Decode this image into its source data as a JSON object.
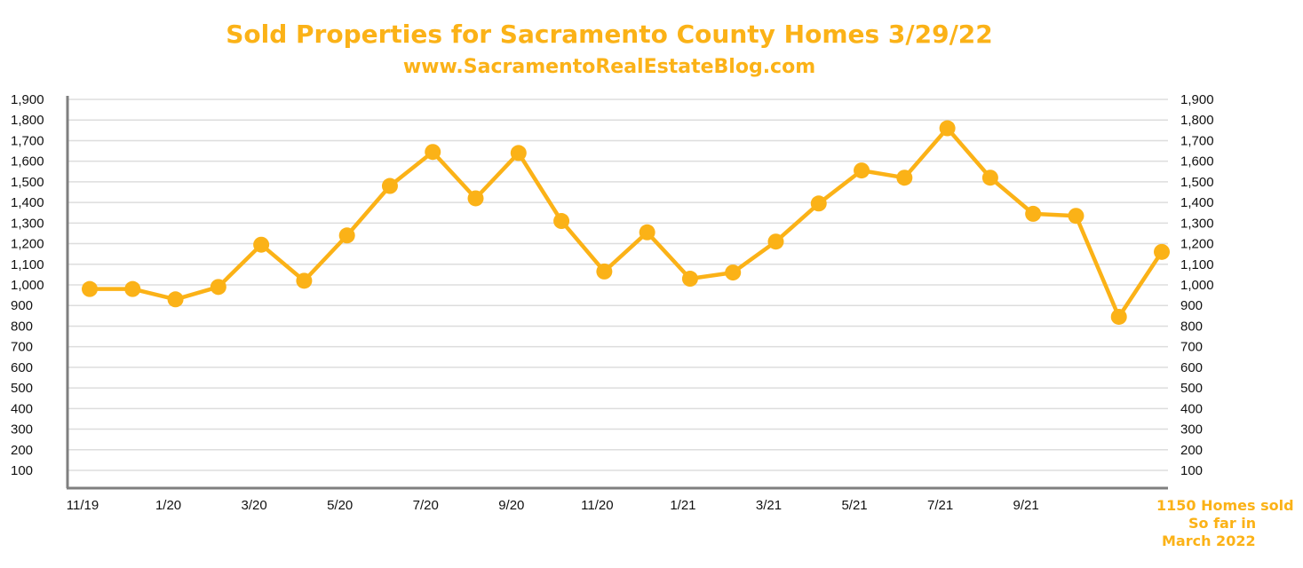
{
  "colors": {
    "accent": "#FBB217",
    "grid": "#dddddd",
    "axis": "#7f7f7f",
    "text": "#111111"
  },
  "chart_data": {
    "type": "line",
    "title": "Sold Properties for Sacramento County Homes 3/29/22",
    "subtitle": "www.SacramentoRealEstateBlog.com",
    "xlabel": "",
    "ylabel": "",
    "ylim": [
      0,
      1900
    ],
    "y_ticks": [
      "100",
      "200",
      "300",
      "400",
      "500",
      "600",
      "700",
      "800",
      "900",
      "1,000",
      "1,100",
      "1,200",
      "1,300",
      "1,400",
      "1,500",
      "1,600",
      "1,700",
      "1,800",
      "1,900"
    ],
    "y_tick_values": [
      100,
      200,
      300,
      400,
      500,
      600,
      700,
      800,
      900,
      1000,
      1100,
      1200,
      1300,
      1400,
      1500,
      1600,
      1700,
      1800,
      1900
    ],
    "x_tick_labels": [
      "11/19",
      "1/20",
      "3/20",
      "5/20",
      "7/20",
      "9/20",
      "11/20",
      "1/21",
      "3/21",
      "5/21",
      "7/21",
      "9/21"
    ],
    "grid": true,
    "right_axis": true,
    "x": [
      "11/19",
      "12/19",
      "1/20",
      "2/20",
      "3/20",
      "4/20",
      "5/20",
      "6/20",
      "7/20",
      "8/20",
      "9/20",
      "10/20",
      "11/20",
      "12/20",
      "1/21",
      "2/21",
      "3/21",
      "4/21",
      "5/21",
      "6/21",
      "7/21",
      "8/21",
      "9/21",
      "10/21",
      "11/21",
      "12/21"
    ],
    "series": [
      {
        "values": [
          980,
          980,
          930,
          990,
          1195,
          1020,
          1240,
          1480,
          1645,
          1420,
          1640,
          1310,
          1065,
          1255,
          1030,
          1060,
          1210,
          1395,
          1555,
          1520,
          1760,
          1520,
          1345,
          1335,
          845,
          1160
        ]
      }
    ],
    "annotations": [
      {
        "lines": [
          "1150 Homes sold",
          "So  far in",
          "March 2022"
        ]
      }
    ]
  }
}
